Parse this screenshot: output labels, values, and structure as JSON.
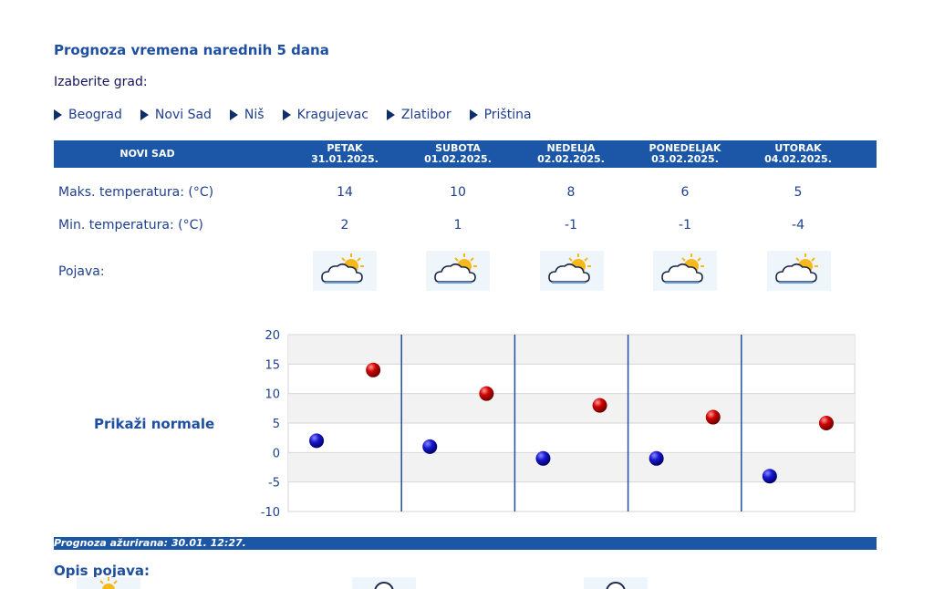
{
  "title": "Prognoza vremena narednih 5 dana",
  "choose_label": "Izaberite grad:",
  "cities": [
    "Beograd",
    "Novi Sad",
    "Niš",
    "Kragujevac",
    "Zlatibor",
    "Priština"
  ],
  "table": {
    "city": "NOVI SAD",
    "days": [
      {
        "name": "PETAK",
        "date": "31.01.2025.",
        "max": "14",
        "min": "2"
      },
      {
        "name": "SUBOTA",
        "date": "01.02.2025.",
        "max": "10",
        "min": "1"
      },
      {
        "name": "NEDELJA",
        "date": "02.02.2025.",
        "max": "8",
        "min": "-1"
      },
      {
        "name": "PONEDELJAK",
        "date": "03.02.2025.",
        "max": "6",
        "min": "-1"
      },
      {
        "name": "UTORAK",
        "date": "04.02.2025.",
        "max": "5",
        "min": "-4"
      }
    ],
    "max_label": "Maks. temperatura: (°C)",
    "min_label": "Min. temperatura: (°C)",
    "pojava_label": "Pojava:",
    "icon": "partly-cloudy-sun-icon"
  },
  "normale_link": "Prikaži normale",
  "chart_data": {
    "type": "scatter",
    "categories": [
      "31.01.2025.",
      "01.02.2025.",
      "02.02.2025.",
      "03.02.2025.",
      "04.02.2025."
    ],
    "series": [
      {
        "values": [
          2,
          1,
          -1,
          -1,
          -4
        ],
        "color": "#1010c8"
      },
      {
        "values": [
          14,
          10,
          8,
          6,
          5
        ],
        "color": "#cc0000"
      }
    ],
    "ylim": [
      -10,
      20
    ],
    "yticks": [
      "20",
      "15",
      "10",
      "5",
      "0",
      "-5",
      "-10"
    ],
    "grid": true
  },
  "footer": {
    "updated_label": "Prognoza ažurirana:",
    "updated_value": "30.01. 12:27."
  },
  "opis_label": "Opis pojava:"
}
